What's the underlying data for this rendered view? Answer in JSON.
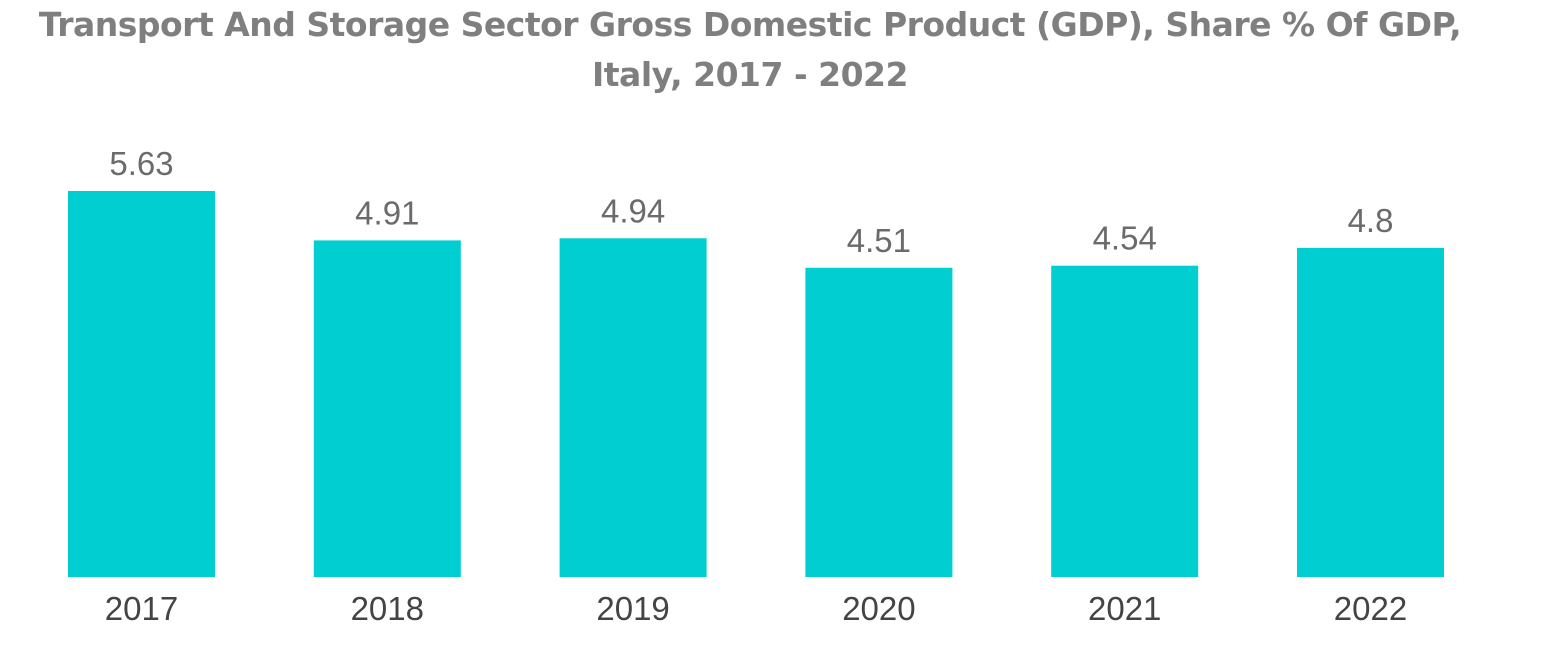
{
  "chart_data": {
    "type": "bar",
    "title_lines": [
      "Transport And Storage Sector Gross Domestic Product (GDP), Share % Of GDP,",
      "Italy, 2017 - 2022"
    ],
    "categories": [
      "2017",
      "2018",
      "2019",
      "2020",
      "2021",
      "2022"
    ],
    "values": [
      5.63,
      4.91,
      4.94,
      4.51,
      4.54,
      4.8
    ],
    "value_labels": [
      "5.63",
      "4.91",
      "4.94",
      "4.51",
      "4.54",
      "4.8"
    ],
    "xlabel": "",
    "ylabel": "",
    "ylim": [
      0,
      5.63
    ],
    "grid": false,
    "legend": "none",
    "bar_color": "#00ced1"
  }
}
